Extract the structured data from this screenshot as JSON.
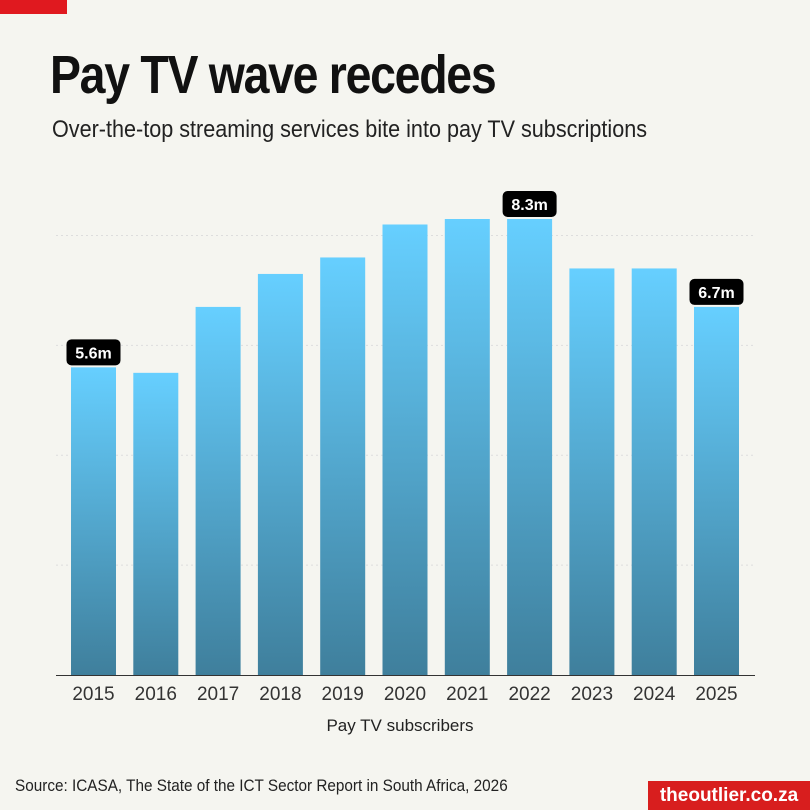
{
  "header": {
    "title": "Pay TV wave recedes",
    "subtitle": "Over-the-top streaming services bite into pay TV subscriptions"
  },
  "footer": {
    "source": "Source: ICASA, The State of the ICT Sector Report in South Africa, 2026",
    "brand": "theoutlier.co.za"
  },
  "colors": {
    "bar_top": "#66cfff",
    "bar_bottom": "#3f7f9c",
    "accent": "#e0191f",
    "label_bg": "#000000"
  },
  "chart_data": {
    "type": "bar",
    "title": "Pay TV wave recedes",
    "xlabel": "Pay TV subscribers",
    "ylabel": "",
    "categories": [
      "2015",
      "2016",
      "2017",
      "2018",
      "2019",
      "2020",
      "2021",
      "2022",
      "2023",
      "2024",
      "2025"
    ],
    "values": [
      5.6,
      5.5,
      6.7,
      7.3,
      7.6,
      8.2,
      8.3,
      8.3,
      7.4,
      7.4,
      6.7
    ],
    "unit": "m",
    "data_labels": [
      {
        "index": 0,
        "text": "5.6m"
      },
      {
        "index": 7,
        "text": "8.3m"
      },
      {
        "index": 10,
        "text": "6.7m"
      }
    ],
    "ylim": [
      0,
      8.3
    ],
    "gridlines": [
      2,
      4,
      6,
      8
    ],
    "grid": true,
    "y_tick_labels_shown": false
  }
}
